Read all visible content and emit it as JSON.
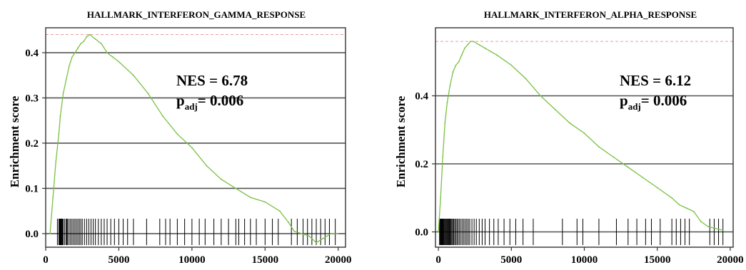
{
  "colors": {
    "curve": "#7ac143",
    "hits": "#000000",
    "grid": "#555555",
    "frame": "#333333",
    "max_line": "#e6a0a0"
  },
  "chart_data": [
    {
      "type": "line",
      "title": "HALLMARK_INTERFERON_GAMMA_RESPONSE",
      "xlabel": "",
      "ylabel": "Enrichment score",
      "xlim": [
        0,
        20500
      ],
      "ylim": [
        -0.03,
        0.455
      ],
      "xticks": [
        0,
        5000,
        10000,
        15000,
        20000
      ],
      "xtick_labels": [
        "0",
        "5000",
        "10000",
        "15000",
        "20000"
      ],
      "yticks": [
        0.0,
        0.1,
        0.2,
        0.3,
        0.4
      ],
      "ytick_labels": [
        "0.0",
        "0.1",
        "0.2",
        "0.3",
        "0.4"
      ],
      "grid": "horizontal",
      "max_es": 0.44,
      "nes_text": "NES = 6.78",
      "padj_p": "p",
      "padj_sub": "adj",
      "padj_value": "= 0.006",
      "series": [
        {
          "x": [
            300,
            500,
            700,
            900,
            1000,
            1200,
            1400,
            1600,
            1800,
            2000,
            2200,
            2400,
            2600,
            2800,
            3000,
            3400,
            3800,
            4200,
            4600,
            5000,
            6000,
            7000,
            8000,
            9000,
            10000,
            11000,
            12000,
            13000,
            14000,
            15000,
            16000,
            16600,
            17000,
            17500,
            18000,
            18500,
            19000,
            19500,
            20000
          ],
          "y": [
            0.0,
            0.08,
            0.16,
            0.22,
            0.26,
            0.31,
            0.34,
            0.37,
            0.39,
            0.4,
            0.41,
            0.42,
            0.425,
            0.435,
            0.44,
            0.43,
            0.42,
            0.4,
            0.39,
            0.38,
            0.35,
            0.31,
            0.26,
            0.22,
            0.19,
            0.15,
            0.12,
            0.1,
            0.08,
            0.07,
            0.05,
            0.025,
            0.005,
            0.0,
            -0.005,
            -0.02,
            -0.01,
            0.0,
            0.0
          ]
        }
      ],
      "hits": [
        800,
        900,
        950,
        1000,
        1050,
        1100,
        1150,
        1200,
        1300,
        1400,
        1450,
        1500,
        1600,
        1700,
        1800,
        1900,
        2000,
        2100,
        2200,
        2300,
        2400,
        2500,
        2650,
        2800,
        2950,
        3100,
        3250,
        3400,
        3600,
        3800,
        4000,
        4200,
        4450,
        4700,
        5000,
        5300,
        5600,
        6000,
        6900,
        7800,
        8200,
        8500,
        9000,
        9500,
        10000,
        10500,
        10900,
        11500,
        12000,
        12500,
        13000,
        13200,
        13600,
        14000,
        14400,
        15000,
        15500,
        15900,
        16800,
        17200,
        17600,
        17900,
        18200,
        18500,
        18800,
        19100,
        19400,
        19800
      ]
    },
    {
      "type": "line",
      "title": "HALLMARK_INTERFERON_ALPHA_RESPONSE",
      "xlabel": "",
      "ylabel": "Enrichment score",
      "xlim": [
        -200,
        20200
      ],
      "ylim": [
        -0.045,
        0.6
      ],
      "xticks": [
        0,
        5000,
        10000,
        15000,
        20000
      ],
      "xtick_labels": [
        "0",
        "5000",
        "10000",
        "15000",
        "20000"
      ],
      "yticks": [
        0.0,
        0.2,
        0.4
      ],
      "ytick_labels": [
        "0.0",
        "0.2",
        "0.4"
      ],
      "grid": "horizontal",
      "max_es": 0.56,
      "nes_text": "NES = 6.12",
      "padj_p": "p",
      "padj_sub": "adj",
      "padj_value": "= 0.006",
      "series": [
        {
          "x": [
            0,
            150,
            300,
            450,
            600,
            800,
            1000,
            1200,
            1400,
            1600,
            1800,
            2000,
            2200,
            2400,
            2800,
            3200,
            3600,
            4000,
            5000,
            6000,
            7000,
            8000,
            9000,
            10000,
            11000,
            12000,
            13000,
            14000,
            15000,
            16000,
            16500,
            17000,
            17500,
            18000,
            18500,
            19000,
            19500
          ],
          "y": [
            0.0,
            0.1,
            0.22,
            0.32,
            0.38,
            0.43,
            0.47,
            0.49,
            0.5,
            0.52,
            0.54,
            0.55,
            0.56,
            0.56,
            0.55,
            0.54,
            0.53,
            0.52,
            0.49,
            0.45,
            0.4,
            0.36,
            0.32,
            0.29,
            0.25,
            0.22,
            0.19,
            0.16,
            0.13,
            0.1,
            0.08,
            0.07,
            0.06,
            0.03,
            0.015,
            0.01,
            0.005
          ]
        }
      ],
      "hits": [
        80,
        120,
        160,
        200,
        240,
        280,
        320,
        360,
        400,
        450,
        500,
        550,
        600,
        650,
        700,
        750,
        800,
        860,
        920,
        980,
        1050,
        1120,
        1200,
        1280,
        1360,
        1450,
        1550,
        1650,
        1750,
        1850,
        1950,
        2050,
        2150,
        2300,
        2450,
        2600,
        2800,
        3000,
        3200,
        3500,
        3800,
        4100,
        4500,
        4900,
        5300,
        5800,
        6500,
        8500,
        9500,
        9900,
        11000,
        12200,
        13000,
        13600,
        14200,
        14600,
        15200,
        16000,
        16300,
        16600,
        16900,
        17200,
        18600,
        18900,
        19200,
        19500
      ]
    }
  ]
}
